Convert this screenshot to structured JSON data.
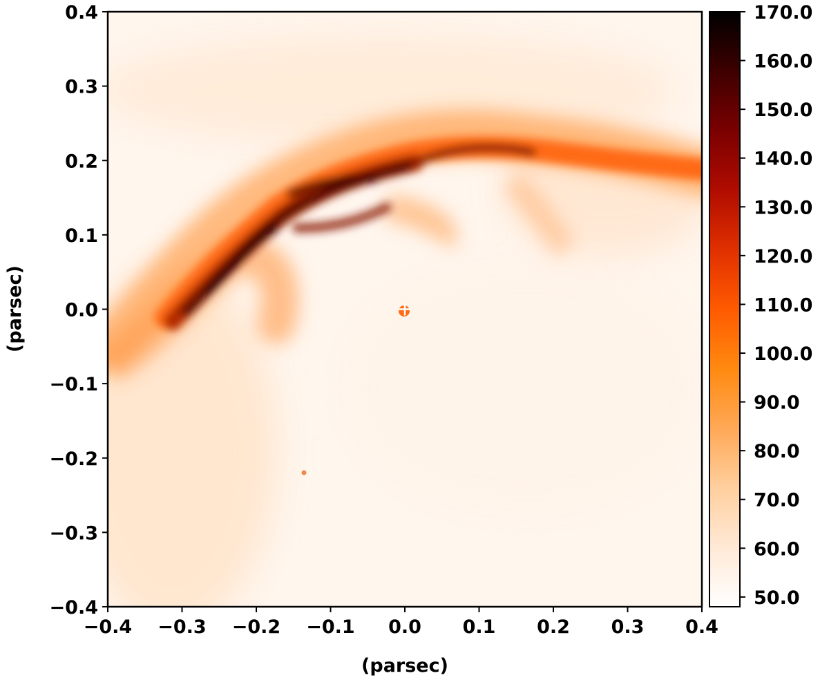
{
  "chart_data": {
    "type": "heatmap",
    "xlabel": "(parsec)",
    "ylabel": "(parsec)",
    "xlim": [
      -0.4,
      0.4
    ],
    "ylim": [
      -0.4,
      0.4
    ],
    "x_ticks": [
      -0.4,
      -0.3,
      -0.2,
      -0.1,
      0.0,
      0.1,
      0.2,
      0.3,
      0.4
    ],
    "y_ticks": [
      -0.4,
      -0.3,
      -0.2,
      -0.1,
      0.0,
      0.1,
      0.2,
      0.3,
      0.4
    ],
    "x_tick_labels": [
      "−0.4",
      "−0.3",
      "−0.2",
      "−0.1",
      "0.0",
      "0.1",
      "0.2",
      "0.3",
      "0.4"
    ],
    "y_tick_labels": [
      "−0.4",
      "−0.3",
      "−0.2",
      "−0.1",
      "0.0",
      "0.1",
      "0.2",
      "0.3",
      "0.4"
    ],
    "colorbar": {
      "range": [
        48,
        170
      ],
      "ticks": [
        50,
        60,
        70,
        80,
        90,
        100,
        110,
        120,
        130,
        140,
        150,
        160,
        170
      ],
      "tick_labels": [
        "50.0",
        "60.0",
        "70.0",
        "80.0",
        "90.0",
        "100.0",
        "110.0",
        "120.0",
        "130.0",
        "140.0",
        "150.0",
        "160.0",
        "170.0"
      ],
      "colormap": [
        "#ffffff",
        "#ffe9d6",
        "#ffcf9e",
        "#ffa856",
        "#ff8a10",
        "#ff5a00",
        "#e03000",
        "#b00c00",
        "#7a0000",
        "#3e0000",
        "#000000"
      ]
    },
    "marker": {
      "symbol": "+",
      "x": 0.0,
      "y": 0.0,
      "color": "#ffffff"
    },
    "grid": false
  }
}
